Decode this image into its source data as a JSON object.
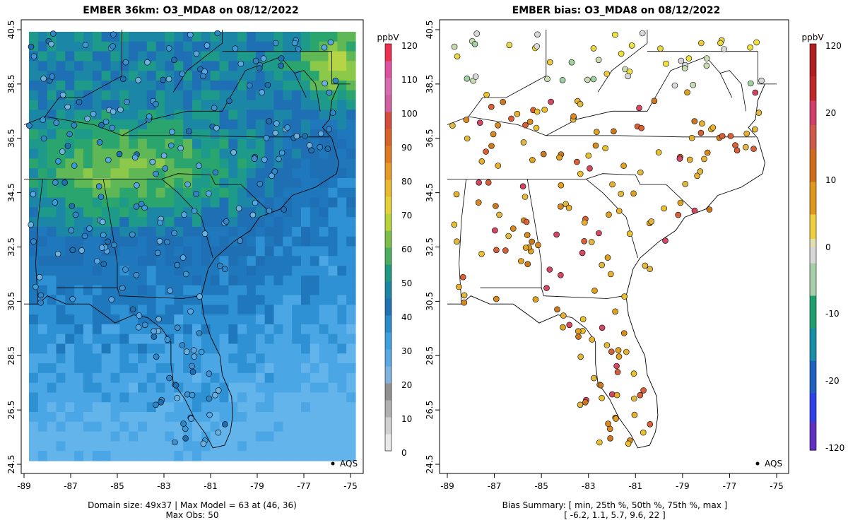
{
  "left_panel": {
    "title": "EMBER 36km: O3_MDA8 on 08/12/2022",
    "footer_line1": "Domain size: 49x37 | Max Model = 63 at (46, 36)",
    "footer_line2": "Max Obs: 50",
    "legend_label": "AQS",
    "colorbar_unit": "ppbV",
    "colorbar_ticks": [
      "0",
      "10",
      "20",
      "30",
      "40",
      "50",
      "60",
      "70",
      "80",
      "90",
      "100",
      "110",
      "120"
    ]
  },
  "right_panel": {
    "title": "EMBER bias: O3_MDA8 on 08/12/2022",
    "footer_line1": "Bias Summary: [ min, 25th %, 50th %, 75th %, max ]",
    "footer_line2": "[ -6.2,   1.1,   5.7,   9.6,   22 ]",
    "legend_label": "AQS",
    "colorbar_unit": "ppbV",
    "colorbar_ticks": [
      "120",
      "20",
      "10",
      "0",
      "-10",
      "-20",
      "-120"
    ]
  },
  "axes": {
    "x_ticks": [
      "-89",
      "-87",
      "-85",
      "-83",
      "-81",
      "-79",
      "-77",
      "-75"
    ],
    "y_ticks": [
      "40.5",
      "38.5",
      "36.5",
      "34.5",
      "32.5",
      "30.5",
      "28.5",
      "26.5",
      "24.5"
    ]
  },
  "colors": {
    "o3_scale": [
      "#e0e0e0",
      "#c8c8c8",
      "#a0a0a0",
      "#7fb2dc",
      "#56a6e6",
      "#3a8fd2",
      "#1f6fb0",
      "#1e86b4",
      "#2aa57a",
      "#6fbf4a",
      "#c7d83c",
      "#e8b830",
      "#e07a20",
      "#d84040",
      "#d860a0",
      "#e0306a",
      "#ff2020"
    ],
    "bias_scale": [
      "#6a2090",
      "#3050f0",
      "#2060c0",
      "#1e90a0",
      "#40a060",
      "#d0d0d0",
      "#f0e040",
      "#e0a020",
      "#d07018",
      "#c84060",
      "#c02020"
    ]
  },
  "chart_data": [
    {
      "type": "heatmap",
      "title": "EMBER 36km: O3_MDA8 on 08/12/2022",
      "unit": "ppbV",
      "x_range": [
        -89,
        -75
      ],
      "y_range": [
        24.5,
        40.5
      ],
      "color_range": [
        0,
        120
      ],
      "stations": "AQS",
      "max_model": 63,
      "max_obs": 50,
      "domain_size": "49x37"
    },
    {
      "type": "scatter",
      "title": "EMBER bias: O3_MDA8 on 08/12/2022",
      "unit": "ppbV",
      "x_range": [
        -89,
        -75
      ],
      "y_range": [
        24.5,
        40.5
      ],
      "bias_summary": {
        "min": -6.2,
        "p25": 1.1,
        "p50": 5.7,
        "p75": 9.6,
        "max": 22
      }
    }
  ]
}
